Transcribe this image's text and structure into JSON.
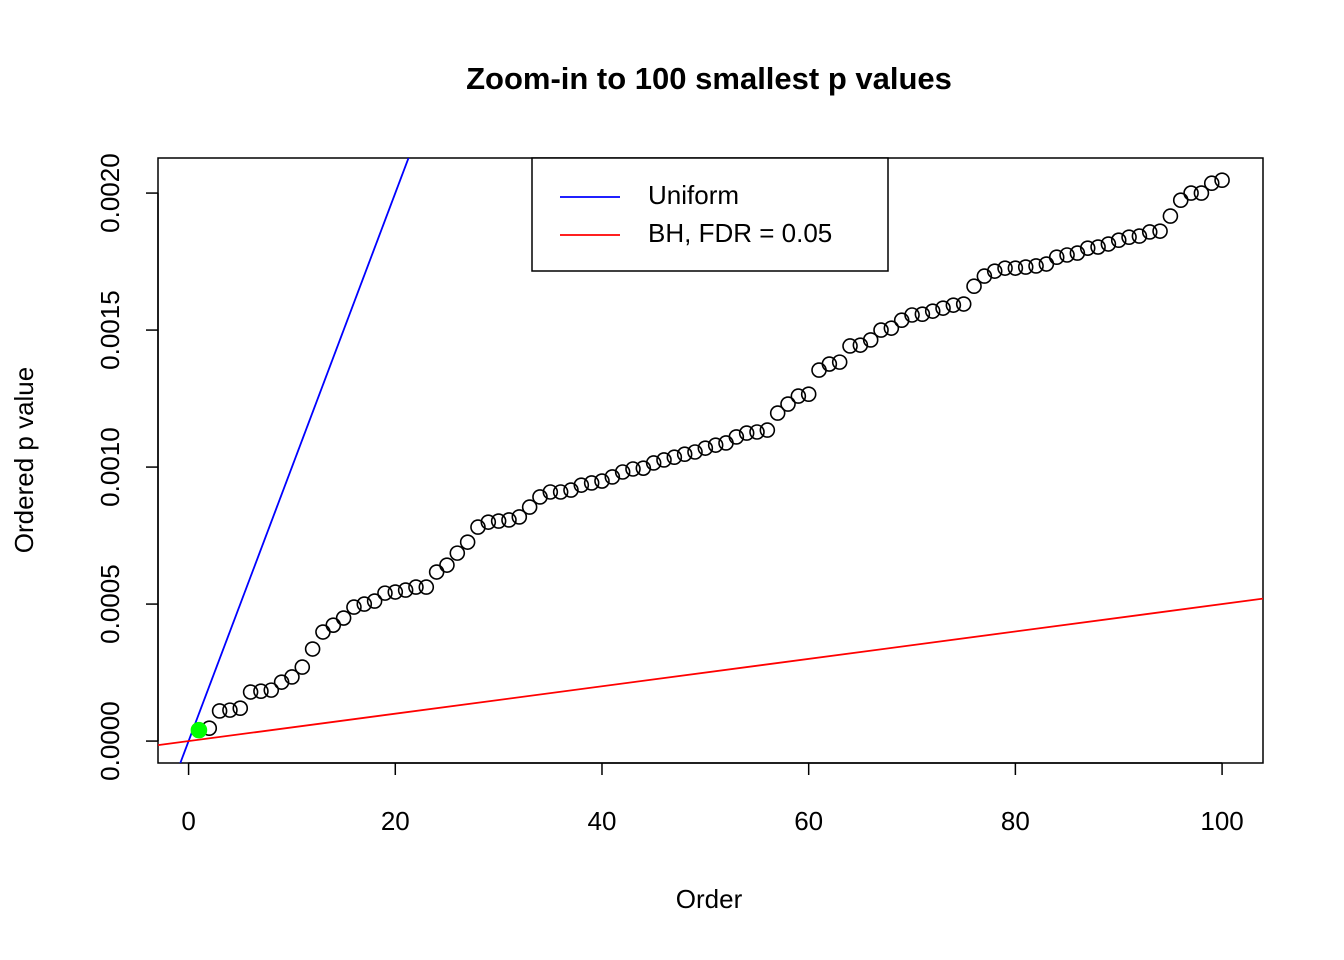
{
  "chart_data": {
    "type": "scatter",
    "title": "Zoom-in to 100 smallest p values",
    "xlabel": "Order",
    "ylabel": "Ordered p value",
    "x": [
      1,
      2,
      3,
      4,
      5,
      6,
      7,
      8,
      9,
      10,
      11,
      12,
      13,
      14,
      15,
      16,
      17,
      18,
      19,
      20,
      21,
      22,
      23,
      24,
      25,
      26,
      27,
      28,
      29,
      30,
      31,
      32,
      33,
      34,
      35,
      36,
      37,
      38,
      39,
      40,
      41,
      42,
      43,
      44,
      45,
      46,
      47,
      48,
      49,
      50,
      51,
      52,
      53,
      54,
      55,
      56,
      57,
      58,
      59,
      60,
      61,
      62,
      63,
      64,
      65,
      66,
      67,
      68,
      69,
      70,
      71,
      72,
      73,
      74,
      75,
      76,
      77,
      78,
      79,
      80,
      81,
      82,
      83,
      84,
      85,
      86,
      87,
      88,
      89,
      90,
      91,
      92,
      93,
      94,
      95,
      96,
      97,
      98,
      99,
      100
    ],
    "series": [
      {
        "color": "#000000",
        "marker": "open",
        "values": [
          4e-05,
          4.7e-05,
          0.00011,
          0.000113,
          0.00012,
          0.000179,
          0.000182,
          0.000186,
          0.000215,
          0.000234,
          0.00027,
          0.000336,
          0.000398,
          0.000423,
          0.000449,
          0.000489,
          0.0005,
          0.000511,
          0.00054,
          0.000544,
          0.000551,
          0.000562,
          0.000562,
          0.000617,
          0.000642,
          0.000686,
          0.000726,
          0.000781,
          0.000799,
          0.000803,
          0.000807,
          0.000818,
          0.000854,
          0.000891,
          0.000909,
          0.000909,
          0.000916,
          0.000934,
          0.000942,
          0.000949,
          0.000964,
          0.000982,
          0.000993,
          0.000996,
          0.001015,
          0.001026,
          0.001036,
          0.001047,
          0.001055,
          0.001069,
          0.00108,
          0.001088,
          0.00111,
          0.001124,
          0.001128,
          0.001135,
          0.001197,
          0.00123,
          0.001259,
          0.001266,
          0.001354,
          0.001376,
          0.001383,
          0.001442,
          0.001445,
          0.001464,
          0.0015,
          0.001507,
          0.001536,
          0.001555,
          0.001558,
          0.001569,
          0.00158,
          0.001591,
          0.001595,
          0.00166,
          0.001697,
          0.001715,
          0.001726,
          0.001726,
          0.00173,
          0.001734,
          0.001741,
          0.001766,
          0.001774,
          0.001781,
          0.001799,
          0.001803,
          0.001814,
          0.001828,
          0.001839,
          0.001843,
          0.001858,
          0.001861,
          0.001916,
          0.001974,
          0.002,
          0.002,
          0.002036,
          0.002047
        ]
      }
    ],
    "highlight": {
      "color": "#00ff00",
      "marker": "filled",
      "x": [
        1
      ],
      "values": [
        4e-05
      ]
    },
    "lines": [
      {
        "name": "Uniform",
        "color": "#0000ff",
        "slope": 0.0001,
        "intercept": 0
      },
      {
        "name": "BH, FDR = 0.05",
        "color": "#ff0000",
        "slope": 5e-06,
        "intercept": 0
      }
    ],
    "legend": "top",
    "xlim": [
      -2.96,
      103.96
    ],
    "ylim": [
      -8e-05,
      0.002128
    ],
    "xticks": [
      0,
      20,
      40,
      60,
      80,
      100
    ],
    "yticks": [
      {
        "value": 0,
        "label": "0.0000"
      },
      {
        "value": 0.0005,
        "label": "0.0005"
      },
      {
        "value": 0.001,
        "label": "0.0010"
      },
      {
        "value": 0.0015,
        "label": "0.0015"
      },
      {
        "value": 0.002,
        "label": "0.0020"
      }
    ]
  }
}
